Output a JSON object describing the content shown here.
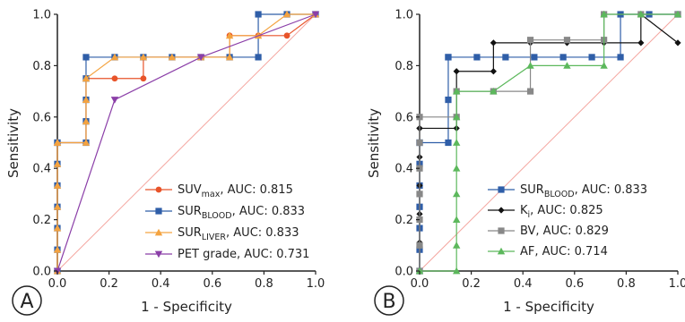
{
  "figure": {
    "panel_a": {
      "letter": "A",
      "xlabel": "1 - Specificity",
      "ylabel": "Sensitivity",
      "xticks": [
        "0.0",
        "0.2",
        "0.4",
        "0.6",
        "0.8",
        "1.0"
      ],
      "yticks": [
        "0.0",
        "0.2",
        "0.4",
        "0.6",
        "0.8",
        "1.0"
      ],
      "legend": [
        {
          "base": "SUV",
          "sub": "max",
          "tail": ", AUC: 0.815"
        },
        {
          "base": "SUR",
          "sub": "BLOOD",
          "tail": ", AUC: 0.833"
        },
        {
          "base": "SUR",
          "sub": "LIVER",
          "tail": ", AUC: 0.833"
        },
        {
          "base": "PET grade",
          "sub": "",
          "tail": ", AUC: 0.731"
        }
      ]
    },
    "panel_b": {
      "letter": "B",
      "xlabel": "1 - Specificity",
      "ylabel": "Sensitivity",
      "xticks": [
        "0.0",
        "0.2",
        "0.4",
        "0.6",
        "0.8",
        "1.0"
      ],
      "yticks": [
        "0.0",
        "0.2",
        "0.4",
        "0.6",
        "0.8",
        "1.0"
      ],
      "legend": [
        {
          "base": "SUR",
          "sub": "BLOOD",
          "tail": ", AUC: 0.833"
        },
        {
          "base": "K",
          "sub": "i",
          "tail": ", AUC: 0.825"
        },
        {
          "base": "BV",
          "sub": "",
          "tail": ", AUC: 0.829"
        },
        {
          "base": "AF",
          "sub": "",
          "tail": ", AUC: 0.714"
        }
      ]
    }
  },
  "chart_data": [
    {
      "type": "line",
      "panel": "A",
      "xlabel": "1 - Specificity",
      "ylabel": "Sensitivity",
      "xlim": [
        0,
        1
      ],
      "ylim": [
        0,
        1
      ],
      "diagonal_reference": true,
      "series": [
        {
          "name": "SUVmax, AUC: 0.815",
          "color": "#e8542a",
          "marker": "circle",
          "x": [
            0,
            0,
            0,
            0,
            0,
            0,
            0,
            0,
            0.111,
            0.111,
            0.111,
            0.111,
            0.222,
            0.333,
            0.333,
            0.444,
            0.556,
            0.667,
            0.667,
            0.778,
            0.889,
            1
          ],
          "y": [
            0,
            0.083,
            0.167,
            0.25,
            0.333,
            0.417,
            0.5,
            0.5,
            0.5,
            0.583,
            0.667,
            0.75,
            0.75,
            0.75,
            0.833,
            0.833,
            0.833,
            0.833,
            0.917,
            0.917,
            0.917,
            1
          ]
        },
        {
          "name": "SURBLOOD, AUC: 0.833",
          "color": "#2f5ea8",
          "marker": "square",
          "x": [
            0,
            0,
            0,
            0,
            0,
            0,
            0,
            0,
            0.111,
            0.111,
            0.111,
            0.111,
            0.111,
            0.222,
            0.333,
            0.444,
            0.556,
            0.667,
            0.778,
            0.778,
            0.889,
            1
          ],
          "y": [
            0,
            0.083,
            0.167,
            0.25,
            0.333,
            0.417,
            0.5,
            0.5,
            0.5,
            0.583,
            0.667,
            0.75,
            0.833,
            0.833,
            0.833,
            0.833,
            0.833,
            0.833,
            0.833,
            1,
            1,
            1
          ]
        },
        {
          "name": "SURLIVER, AUC: 0.833",
          "color": "#f4a340",
          "marker": "triangle-up",
          "x": [
            0,
            0,
            0,
            0,
            0,
            0,
            0,
            0,
            0.111,
            0.111,
            0.111,
            0.111,
            0.111,
            0.222,
            0.333,
            0.444,
            0.556,
            0.667,
            0.667,
            0.778,
            0.889,
            1
          ],
          "y": [
            0,
            0.083,
            0.167,
            0.25,
            0.333,
            0.417,
            0.5,
            0.5,
            0.5,
            0.583,
            0.667,
            0.75,
            0.75,
            0.833,
            0.833,
            0.833,
            0.833,
            0.833,
            0.917,
            0.917,
            1,
            1
          ]
        },
        {
          "name": "PET grade, AUC: 0.731",
          "color": "#8b3fa8",
          "marker": "triangle-down",
          "x": [
            0,
            0.222,
            0.556,
            1
          ],
          "y": [
            0,
            0.667,
            0.833,
            1
          ]
        }
      ]
    },
    {
      "type": "line",
      "panel": "B",
      "xlabel": "1 - Specificity",
      "ylabel": "Sensitivity",
      "xlim": [
        0,
        1
      ],
      "ylim": [
        0,
        1
      ],
      "diagonal_reference": true,
      "series": [
        {
          "name": "SURBLOOD, AUC: 0.833",
          "color": "#2f5ea8",
          "marker": "square",
          "x": [
            0,
            0,
            0,
            0,
            0,
            0,
            0,
            0,
            0.111,
            0.111,
            0.111,
            0.111,
            0.222,
            0.333,
            0.444,
            0.556,
            0.667,
            0.778,
            0.778,
            0.889,
            1
          ],
          "y": [
            0,
            0.083,
            0.167,
            0.25,
            0.333,
            0.417,
            0.5,
            0.5,
            0.5,
            0.667,
            0.833,
            0.833,
            0.833,
            0.833,
            0.833,
            0.833,
            0.833,
            0.833,
            1,
            1,
            1
          ]
        },
        {
          "name": "Ki, AUC: 0.825",
          "color": "#111111",
          "marker": "diamond",
          "x": [
            0,
            0,
            0,
            0,
            0,
            0,
            0,
            0,
            0,
            0.143,
            0.143,
            0.286,
            0.286,
            0.429,
            0.571,
            0.714,
            0.857,
            0.857,
            1
          ],
          "y": [
            0,
            0.111,
            0.222,
            0.333,
            0.444,
            0.556,
            0.556,
            0.556,
            0.556,
            0.556,
            0.778,
            0.778,
            0.889,
            0.889,
            0.889,
            0.889,
            0.889,
            1,
            0.889
          ]
        },
        {
          "name": "BV, AUC: 0.829",
          "color": "#888888",
          "marker": "square",
          "x": [
            0,
            0,
            0,
            0,
            0,
            0,
            0,
            0.143,
            0.143,
            0.286,
            0.429,
            0.429,
            0.571,
            0.714,
            0.714,
            0.857,
            1
          ],
          "y": [
            0,
            0.1,
            0.2,
            0.3,
            0.4,
            0.5,
            0.6,
            0.6,
            0.7,
            0.7,
            0.7,
            0.9,
            0.9,
            0.9,
            1,
            1,
            1
          ]
        },
        {
          "name": "AF, AUC: 0.714",
          "color": "#5cb85c",
          "marker": "triangle-up",
          "x": [
            0,
            0.143,
            0.143,
            0.143,
            0.143,
            0.143,
            0.143,
            0.143,
            0.143,
            0.286,
            0.429,
            0.571,
            0.714,
            0.714,
            0.857,
            1
          ],
          "y": [
            0,
            0,
            0.1,
            0.2,
            0.3,
            0.4,
            0.5,
            0.6,
            0.7,
            0.7,
            0.8,
            0.8,
            0.8,
            1,
            1,
            1
          ]
        }
      ]
    }
  ]
}
